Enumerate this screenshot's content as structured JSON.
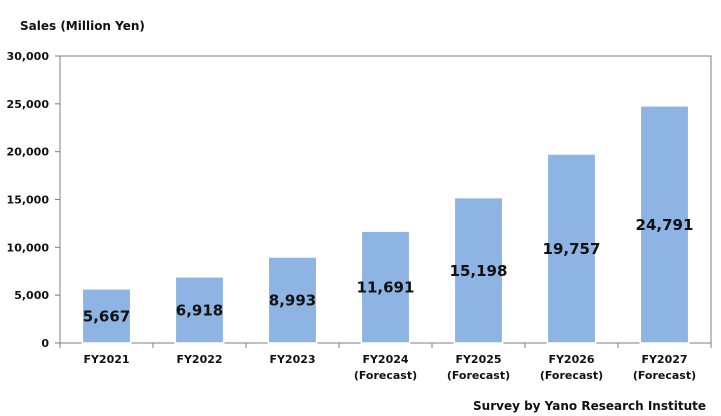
{
  "chart_data": {
    "type": "bar",
    "title": "",
    "ylabel": "Sales (Million Yen)",
    "xlabel": "",
    "categories": [
      [
        "FY2021"
      ],
      [
        "FY2022"
      ],
      [
        "FY2023"
      ],
      [
        "FY2024",
        "(Forecast)"
      ],
      [
        "FY2025",
        "(Forecast)"
      ],
      [
        "FY2026",
        "(Forecast)"
      ],
      [
        "FY2027",
        "(Forecast)"
      ]
    ],
    "values": [
      5667,
      6918,
      8993,
      11691,
      15198,
      19757,
      24791
    ],
    "data_labels": [
      "5,667",
      "6,918",
      "8,993",
      "11,691",
      "15,198",
      "19,757",
      "24,791"
    ],
    "ylim": [
      0,
      30000
    ],
    "yticks": [
      0,
      5000,
      10000,
      15000,
      20000,
      25000,
      30000
    ],
    "ytick_labels": [
      "0",
      "5,000",
      "10,000",
      "15,000",
      "20,000",
      "25,000",
      "30,000"
    ],
    "grid": false,
    "bar_color": "#8eb4e3",
    "bar_edge_color": "#ffffff",
    "source": "Survey by Yano Research Institute"
  }
}
